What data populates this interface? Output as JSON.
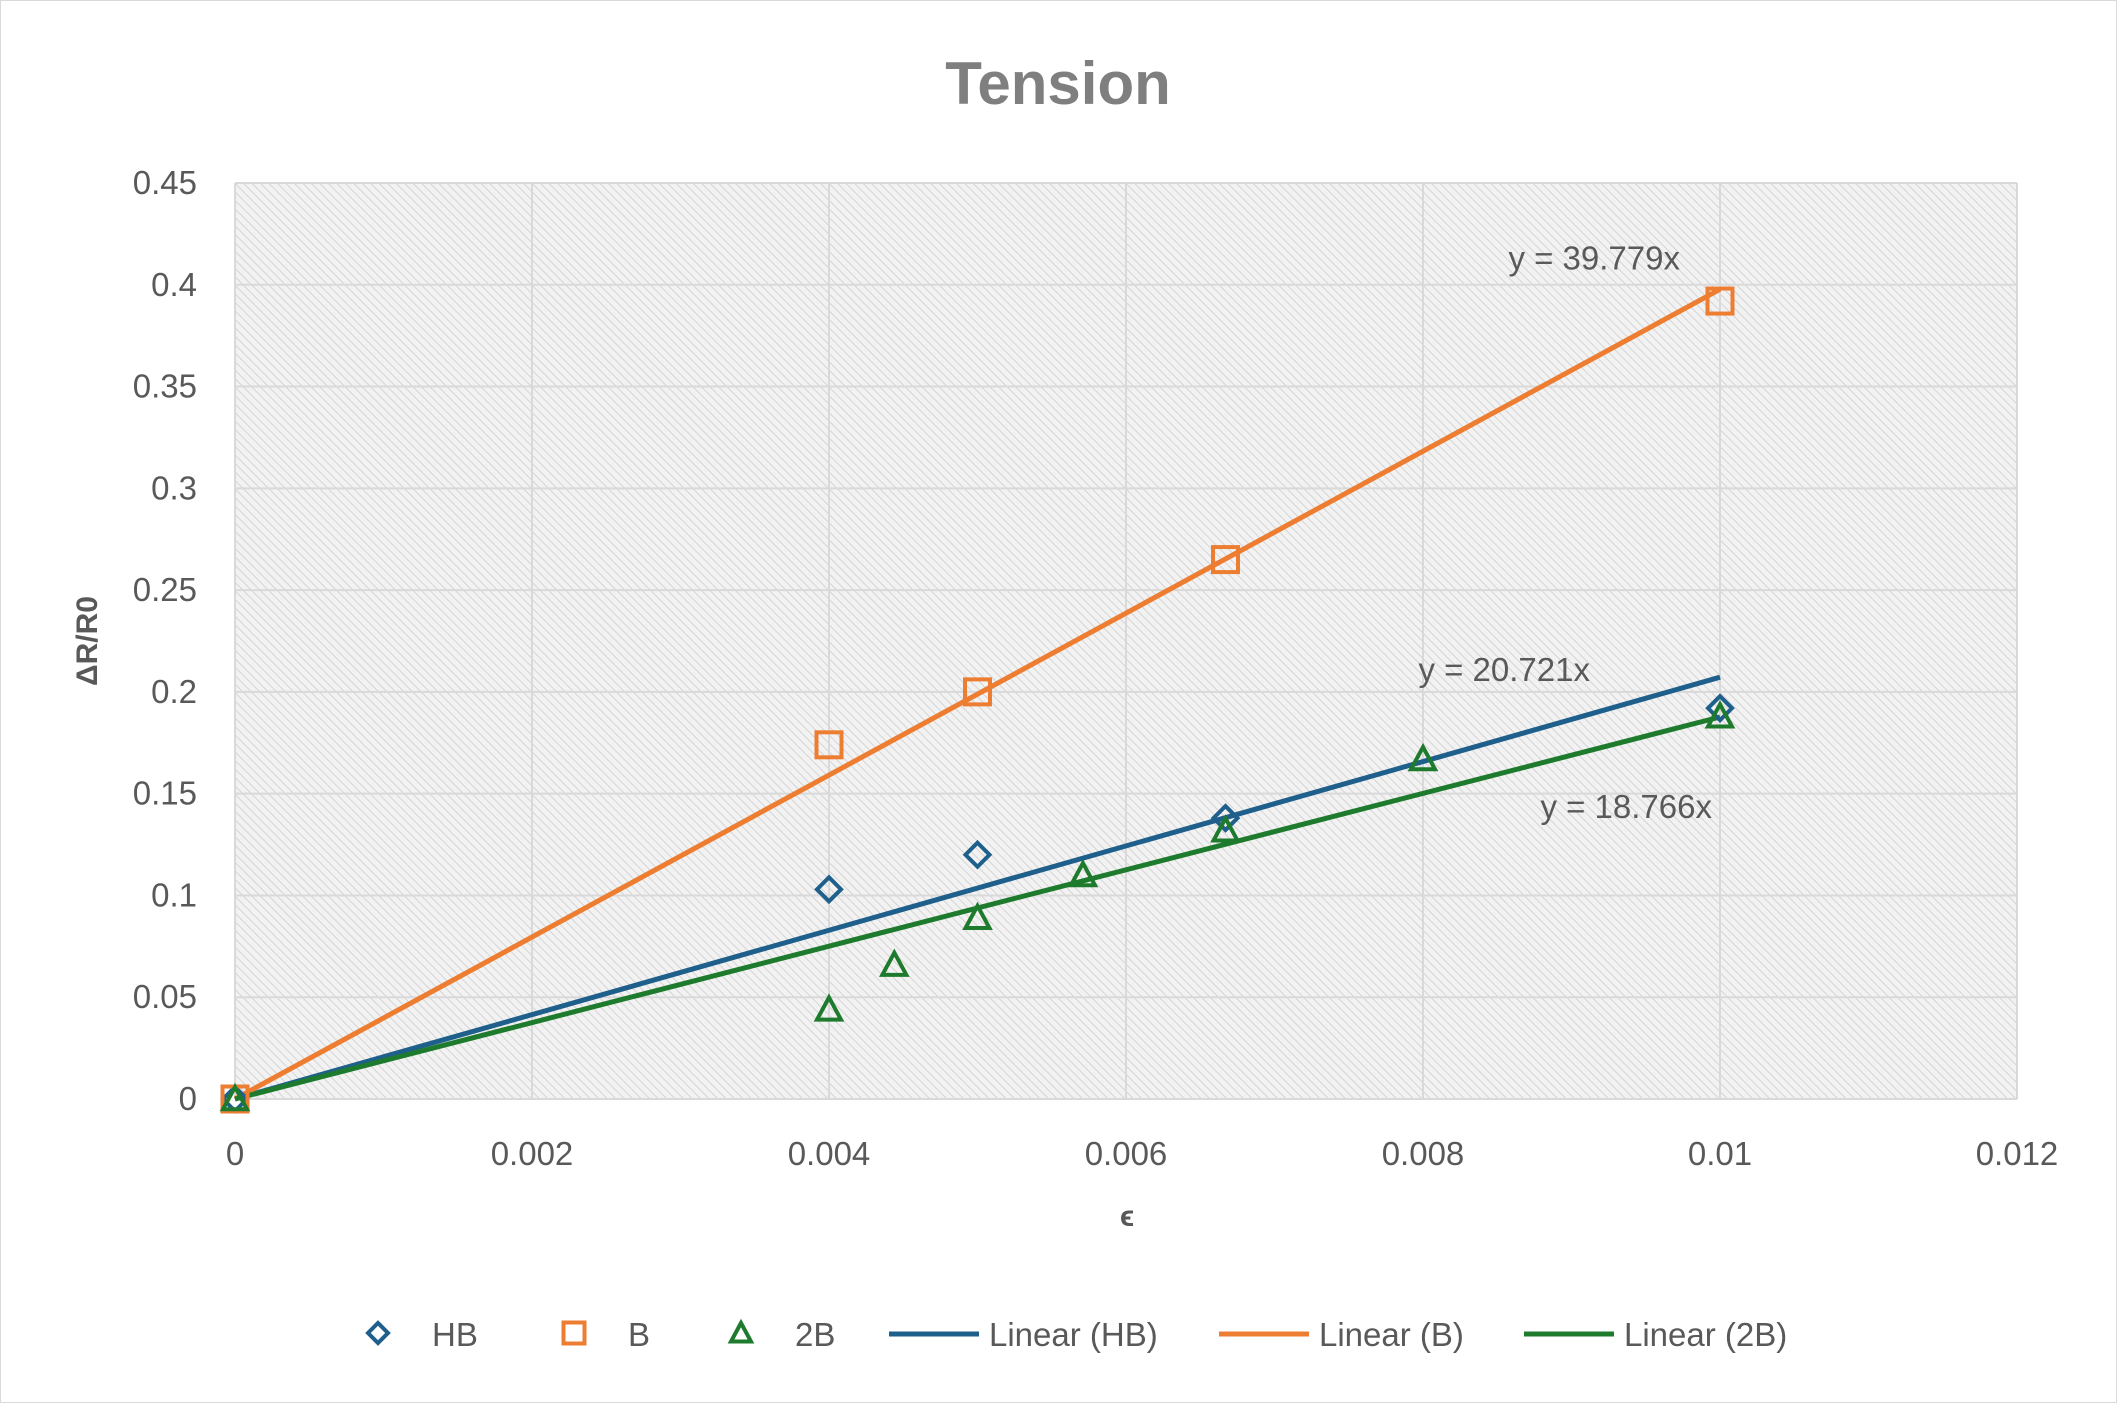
{
  "chart_data": {
    "type": "scatter",
    "title": "Tension",
    "xlabel": "ϵ",
    "ylabel": "ΔR/R0",
    "xlim": [
      0,
      0.012
    ],
    "ylim": [
      0,
      0.45
    ],
    "x_ticks": [
      0,
      0.002,
      0.004,
      0.006,
      0.008,
      0.01,
      0.012
    ],
    "x_tick_labels": [
      "0",
      "0.002",
      "0.004",
      "0.006",
      "0.008",
      "0.01",
      "0.012"
    ],
    "y_ticks": [
      0,
      0.05,
      0.1,
      0.15,
      0.2,
      0.25,
      0.3,
      0.35,
      0.4,
      0.45
    ],
    "y_tick_labels": [
      "0",
      "0.05",
      "0.1",
      "0.15",
      "0.2",
      "0.25",
      "0.3",
      "0.35",
      "0.4",
      "0.45"
    ],
    "grid": true,
    "plot_background": "hatched light gray",
    "legend_position": "bottom",
    "series": [
      {
        "name": "HB",
        "marker": "diamond",
        "color": "#1f5f8b",
        "points": [
          [
            0,
            0
          ],
          [
            0.004,
            0.103
          ],
          [
            0.005,
            0.12
          ],
          [
            0.00667,
            0.138
          ],
          [
            0.01,
            0.192
          ]
        ]
      },
      {
        "name": "B",
        "marker": "square",
        "color": "#ed7d31",
        "points": [
          [
            0,
            0
          ],
          [
            0.004,
            0.174
          ],
          [
            0.005,
            0.2
          ],
          [
            0.00667,
            0.265
          ],
          [
            0.01,
            0.392
          ]
        ]
      },
      {
        "name": "2B",
        "marker": "triangle",
        "color": "#1e7b2d",
        "points": [
          [
            0,
            0
          ],
          [
            0.004,
            0.044
          ],
          [
            0.00444,
            0.066
          ],
          [
            0.005,
            0.089
          ],
          [
            0.00571,
            0.11
          ],
          [
            0.00667,
            0.132
          ],
          [
            0.008,
            0.167
          ],
          [
            0.01,
            0.188
          ]
        ]
      }
    ],
    "trendlines": [
      {
        "name": "Linear (HB)",
        "series": "HB",
        "slope": 20.721,
        "x_range": [
          0,
          0.01
        ],
        "color": "#1f5f8b",
        "equation": "y = 20.721x"
      },
      {
        "name": "Linear (B)",
        "series": "B",
        "slope": 39.779,
        "x_range": [
          0,
          0.01
        ],
        "color": "#ed7d31",
        "equation": "y = 39.779x"
      },
      {
        "name": "Linear (2B)",
        "series": "2B",
        "slope": 18.766,
        "x_range": [
          0,
          0.01
        ],
        "color": "#1e7b2d",
        "equation": "y = 18.766x"
      }
    ]
  }
}
